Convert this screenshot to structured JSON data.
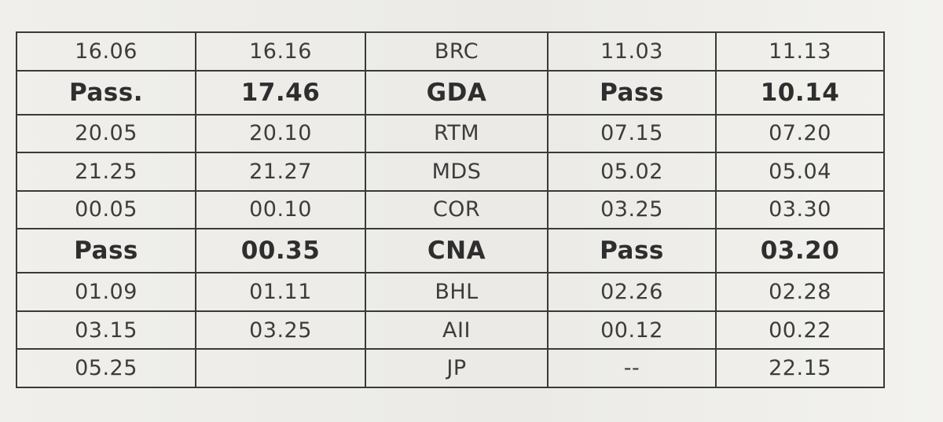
{
  "timetable": {
    "rows": [
      {
        "emphasis": false,
        "cells": [
          "16.06",
          "16.16",
          "BRC",
          "11.03",
          "11.13"
        ]
      },
      {
        "emphasis": true,
        "cells": [
          "Pass.",
          "17.46",
          "GDA",
          "Pass",
          "10.14"
        ]
      },
      {
        "emphasis": false,
        "cells": [
          "20.05",
          "20.10",
          "RTM",
          "07.15",
          "07.20"
        ]
      },
      {
        "emphasis": false,
        "cells": [
          "21.25",
          "21.27",
          "MDS",
          "05.02",
          "05.04"
        ]
      },
      {
        "emphasis": false,
        "cells": [
          "00.05",
          "00.10",
          "COR",
          "03.25",
          "03.30"
        ]
      },
      {
        "emphasis": true,
        "cells": [
          "Pass",
          "00.35",
          "CNA",
          "Pass",
          "03.20"
        ]
      },
      {
        "emphasis": false,
        "cells": [
          "01.09",
          "01.11",
          "BHL",
          "02.26",
          "02.28"
        ]
      },
      {
        "emphasis": false,
        "cells": [
          "03.15",
          "03.25",
          "AII",
          "00.12",
          "00.22"
        ]
      },
      {
        "emphasis": false,
        "cells": [
          "05.25",
          "",
          "JP",
          "--",
          "22.15"
        ]
      }
    ]
  }
}
